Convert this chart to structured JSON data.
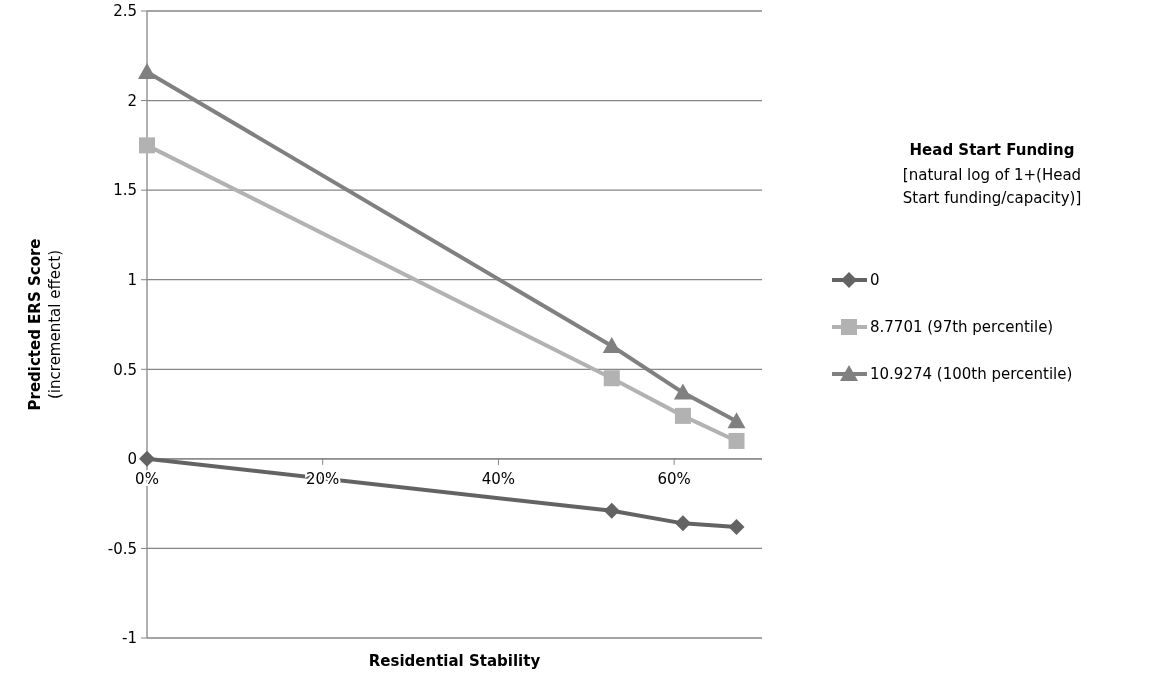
{
  "chart_data": {
    "type": "line",
    "xlabel": "Residential Stability",
    "ylabel": "Predicted ERS Score (incremental effect)",
    "legend_title": "Head Start Funding",
    "subtitle": "[natural log of 1+(Head Start funding/capacity)]",
    "series": [
      {
        "name": "0",
        "color": "#636363",
        "marker": "diamond",
        "x": [
          0,
          52.9,
          61.0,
          67.1
        ],
        "values": [
          0,
          -0.29,
          -0.36,
          -0.38
        ]
      },
      {
        "name": "8.7701 (97th percentile)",
        "color": "#b2b2b2",
        "marker": "square",
        "x": [
          0,
          52.9,
          61.0,
          67.1
        ],
        "values": [
          1.75,
          0.45,
          0.24,
          0.1
        ]
      },
      {
        "name": "10.9274 (100th percentile)",
        "color": "#808080",
        "marker": "triangle",
        "x": [
          0,
          52.9,
          61.0,
          67.1
        ],
        "values": [
          2.16,
          0.63,
          0.37,
          0.21
        ]
      }
    ],
    "xlim": [
      0,
      70
    ],
    "xticks": [
      {
        "value": 0,
        "label": "0%"
      },
      {
        "value": 20,
        "label": "20%"
      },
      {
        "value": 40,
        "label": "40%"
      },
      {
        "value": 60,
        "label": "60%"
      }
    ],
    "ylim": [
      -1,
      2.5
    ],
    "yticks": [
      -1,
      -0.5,
      0,
      0.5,
      1,
      1.5,
      2,
      2.5
    ],
    "grid": "y",
    "legend": "right"
  }
}
